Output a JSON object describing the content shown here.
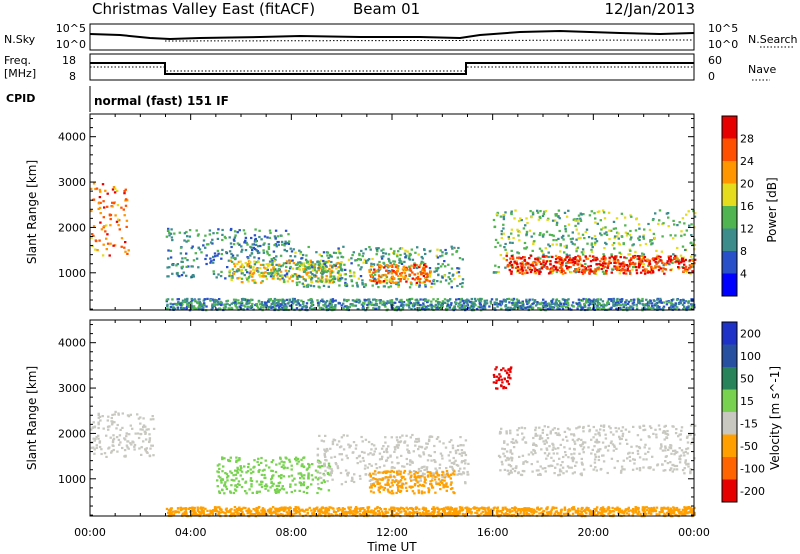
{
  "header": {
    "station": "Christmas Valley East (fitACF)",
    "beam": "Beam 01",
    "date": "12/Jan/2013"
  },
  "noise_panel": {
    "left_label": "N.Sky",
    "left_ticks": [
      "10^5",
      "10^0"
    ],
    "right_ticks": [
      "10^5",
      "10^0"
    ],
    "right_label": "N.Search"
  },
  "freq_panel": {
    "left_label_1": "Freq.",
    "left_label_2": "[MHz]",
    "left_ticks": [
      "18",
      "8"
    ],
    "right_ticks": [
      "60",
      "0"
    ],
    "right_label": "Nave"
  },
  "cpid": {
    "label": "CPID",
    "value": "normal (fast) 151 IF"
  },
  "chart_data": [
    {
      "type": "heatmap",
      "name": "Power",
      "ylabel": "Slant Range [km]",
      "ylim": [
        180,
        4500
      ],
      "y_ticks": [
        1000,
        2000,
        3000,
        4000
      ],
      "y_tick_labels": [
        "1000",
        "2000",
        "3000",
        "4000"
      ],
      "colorbar_label": "Power [dB]",
      "colorbar_ticks": [
        "4",
        "8",
        "12",
        "16",
        "20",
        "24",
        "28"
      ],
      "colorbar_colors": [
        "#0000ff",
        "#2850c8",
        "#3c8c8c",
        "#50b450",
        "#e6dc1e",
        "#ff9600",
        "#ff5000",
        "#e60000"
      ],
      "colorbar_range": [
        0,
        32
      ],
      "echo_regions": [
        {
          "t0": 0.0,
          "t1": 1.5,
          "r0": 1400,
          "r1": 3000,
          "v": 24
        },
        {
          "t0": 3.0,
          "t1": 8.0,
          "r0": 900,
          "r1": 2000,
          "v": 10
        },
        {
          "t0": 5.5,
          "t1": 10.0,
          "r0": 800,
          "r1": 1300,
          "v": 18
        },
        {
          "t0": 8.0,
          "t1": 14.8,
          "r0": 700,
          "r1": 1600,
          "v": 12
        },
        {
          "t0": 11.0,
          "t1": 13.5,
          "r0": 800,
          "r1": 1200,
          "v": 24
        },
        {
          "t0": 16.0,
          "t1": 24.0,
          "r0": 1000,
          "r1": 2400,
          "v": 14
        },
        {
          "t0": 16.5,
          "t1": 24.0,
          "r0": 1000,
          "r1": 1400,
          "v": 28
        },
        {
          "t0": 3.0,
          "t1": 24.0,
          "r0": 200,
          "r1": 450,
          "v": 10
        }
      ]
    },
    {
      "type": "heatmap",
      "name": "Velocity",
      "xlabel": "Time UT",
      "ylabel": "Slant Range [km]",
      "ylim": [
        180,
        4500
      ],
      "y_ticks": [
        1000,
        2000,
        3000,
        4000
      ],
      "y_tick_labels": [
        "1000",
        "2000",
        "3000",
        "4000"
      ],
      "x_ticks": [
        0,
        4,
        8,
        12,
        16,
        20,
        24
      ],
      "x_tick_labels": [
        "00:00",
        "04:00",
        "08:00",
        "12:00",
        "16:00",
        "20:00",
        "00:00"
      ],
      "colorbar_label": "Velocity [m s^-1]",
      "colorbar_ticks": [
        "200",
        "100",
        "50",
        "15",
        "-15",
        "-50",
        "-100",
        "-200"
      ],
      "colorbar_colors": [
        "#1e32c8",
        "#2850a0",
        "#28825a",
        "#78d250",
        "#c8c8c0",
        "#ffa000",
        "#ff6400",
        "#e60000"
      ],
      "echo_regions": [
        {
          "t0": 0.0,
          "t1": 2.5,
          "r0": 1500,
          "r1": 2500,
          "v": 0
        },
        {
          "t0": 5.0,
          "t1": 9.5,
          "r0": 700,
          "r1": 1500,
          "v": 30
        },
        {
          "t0": 9.0,
          "t1": 15.0,
          "r0": 900,
          "r1": 2000,
          "v": 0
        },
        {
          "t0": 11.0,
          "t1": 14.5,
          "r0": 700,
          "r1": 1200,
          "v": -30
        },
        {
          "t0": 16.2,
          "t1": 24.0,
          "r0": 1100,
          "r1": 2200,
          "v": 0
        },
        {
          "t0": 16.0,
          "t1": 16.7,
          "r0": 3000,
          "r1": 3500,
          "v": -150
        },
        {
          "t0": 3.0,
          "t1": 24.0,
          "r0": 200,
          "r1": 400,
          "v": -40
        }
      ]
    }
  ]
}
